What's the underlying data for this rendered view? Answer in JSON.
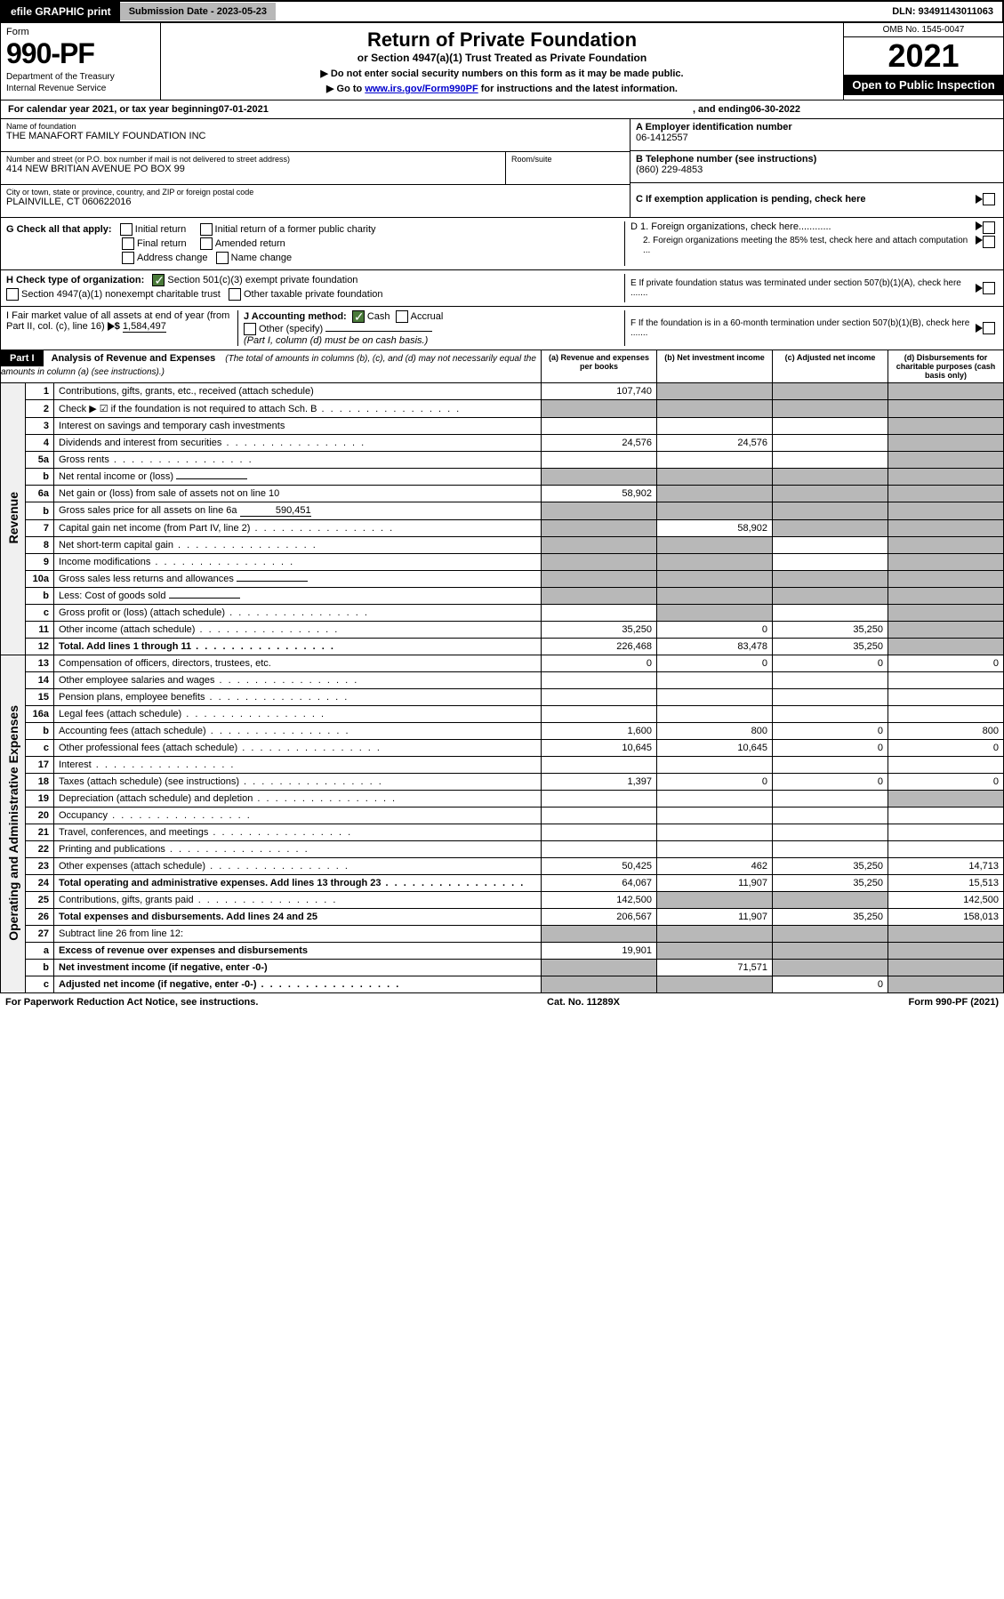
{
  "top": {
    "efile": "efile GRAPHIC print",
    "sub_date_lbl": "Submission Date - 2023-05-23",
    "dln": "DLN: 93491143011063"
  },
  "header": {
    "form_word": "Form",
    "form_no": "990-PF",
    "dept": "Department of the Treasury",
    "irs": "Internal Revenue Service",
    "title": "Return of Private Foundation",
    "subtitle": "or Section 4947(a)(1) Trust Treated as Private Foundation",
    "inst1": "▶ Do not enter social security numbers on this form as it may be made public.",
    "inst2_pre": "▶ Go to ",
    "inst2_link": "www.irs.gov/Form990PF",
    "inst2_post": " for instructions and the latest information.",
    "omb": "OMB No. 1545-0047",
    "year": "2021",
    "open": "Open to Public Inspection"
  },
  "cal": {
    "pre": "For calendar year 2021, or tax year beginning ",
    "begin": "07-01-2021",
    "mid": ", and ending ",
    "end": "06-30-2022"
  },
  "name": {
    "lbl": "Name of foundation",
    "val": "THE MANAFORT FAMILY FOUNDATION INC"
  },
  "addr": {
    "lbl": "Number and street (or P.O. box number if mail is not delivered to street address)",
    "val": "414 NEW BRITIAN AVENUE PO BOX 99",
    "room_lbl": "Room/suite"
  },
  "city": {
    "lbl": "City or town, state or province, country, and ZIP or foreign postal code",
    "val": "PLAINVILLE, CT  060622016"
  },
  "ein": {
    "lbl": "A Employer identification number",
    "val": "06-1412557"
  },
  "tel": {
    "lbl": "B Telephone number (see instructions)",
    "val": "(860) 229-4853"
  },
  "c": "C If exemption application is pending, check here",
  "g": {
    "lbl": "G Check all that apply:",
    "opts": [
      "Initial return",
      "Final return",
      "Address change",
      "Initial return of a former public charity",
      "Amended return",
      "Name change"
    ]
  },
  "d": {
    "d1": "D 1. Foreign organizations, check here............",
    "d2": "2. Foreign organizations meeting the 85% test, check here and attach computation ..."
  },
  "e": "E  If private foundation status was terminated under section 507(b)(1)(A), check here .......",
  "h": {
    "lbl": "H Check type of organization:",
    "o1": "Section 501(c)(3) exempt private foundation",
    "o2": "Section 4947(a)(1) nonexempt charitable trust",
    "o3": "Other taxable private foundation"
  },
  "i": {
    "lbl": "I Fair market value of all assets at end of year (from Part II, col. (c), line 16)",
    "val": "1,584,497"
  },
  "j": {
    "lbl": "J Accounting method:",
    "o1": "Cash",
    "o2": "Accrual",
    "o3": "Other (specify)",
    "note": "(Part I, column (d) must be on cash basis.)"
  },
  "f": "F  If the foundation is in a 60-month termination under section 507(b)(1)(B), check here .......",
  "part1": {
    "hdr": "Part I",
    "title": "Analysis of Revenue and Expenses",
    "note": "(The total of amounts in columns (b), (c), and (d) may not necessarily equal the amounts in column (a) (see instructions).)",
    "cols": [
      "(a)  Revenue and expenses per books",
      "(b)  Net investment income",
      "(c)  Adjusted net income",
      "(d)  Disbursements for charitable purposes (cash basis only)"
    ]
  },
  "revenue_label": "Revenue",
  "expenses_label": "Operating and Administrative Expenses",
  "rows": [
    {
      "n": "1",
      "l": "Contributions, gifts, grants, etc., received (attach schedule)",
      "a": "107,740",
      "b": "",
      "c": "",
      "d": "",
      "grey": [
        "b",
        "c",
        "d"
      ]
    },
    {
      "n": "2",
      "l": "Check ▶ ☑ if the foundation is not required to attach Sch. B",
      "dots": true,
      "grey": [
        "a",
        "b",
        "c",
        "d"
      ]
    },
    {
      "n": "3",
      "l": "Interest on savings and temporary cash investments",
      "a": "",
      "b": "",
      "c": "",
      "d": "",
      "grey": [
        "d"
      ]
    },
    {
      "n": "4",
      "l": "Dividends and interest from securities",
      "dots": true,
      "a": "24,576",
      "b": "24,576",
      "c": "",
      "d": "",
      "grey": [
        "d"
      ]
    },
    {
      "n": "5a",
      "l": "Gross rents",
      "dots": true,
      "grey": [
        "d"
      ]
    },
    {
      "n": "b",
      "l": "Net rental income or (loss)",
      "inline": "",
      "grey": [
        "a",
        "b",
        "c",
        "d"
      ]
    },
    {
      "n": "6a",
      "l": "Net gain or (loss) from sale of assets not on line 10",
      "a": "58,902",
      "grey": [
        "b",
        "c",
        "d"
      ]
    },
    {
      "n": "b",
      "l": "Gross sales price for all assets on line 6a",
      "inline": "590,451",
      "grey": [
        "a",
        "b",
        "c",
        "d"
      ]
    },
    {
      "n": "7",
      "l": "Capital gain net income (from Part IV, line 2)",
      "dots": true,
      "b": "58,902",
      "grey": [
        "a",
        "c",
        "d"
      ]
    },
    {
      "n": "8",
      "l": "Net short-term capital gain",
      "dots": true,
      "grey": [
        "a",
        "b",
        "d"
      ]
    },
    {
      "n": "9",
      "l": "Income modifications",
      "dots": true,
      "grey": [
        "a",
        "b",
        "d"
      ]
    },
    {
      "n": "10a",
      "l": "Gross sales less returns and allowances",
      "inline": "",
      "grey": [
        "a",
        "b",
        "c",
        "d"
      ]
    },
    {
      "n": "b",
      "l": "Less: Cost of goods sold",
      "dots": true,
      "inline": "",
      "grey": [
        "a",
        "b",
        "c",
        "d"
      ]
    },
    {
      "n": "c",
      "l": "Gross profit or (loss) (attach schedule)",
      "dots": true,
      "grey": [
        "b",
        "d"
      ]
    },
    {
      "n": "11",
      "l": "Other income (attach schedule)",
      "dots": true,
      "a": "35,250",
      "b": "0",
      "c": "35,250",
      "grey": [
        "d"
      ]
    },
    {
      "n": "12",
      "l": "Total. Add lines 1 through 11",
      "dots": true,
      "bold": true,
      "a": "226,468",
      "b": "83,478",
      "c": "35,250",
      "grey": [
        "d"
      ]
    },
    {
      "n": "13",
      "l": "Compensation of officers, directors, trustees, etc.",
      "a": "0",
      "b": "0",
      "c": "0",
      "d": "0"
    },
    {
      "n": "14",
      "l": "Other employee salaries and wages",
      "dots": true
    },
    {
      "n": "15",
      "l": "Pension plans, employee benefits",
      "dots": true
    },
    {
      "n": "16a",
      "l": "Legal fees (attach schedule)",
      "dots": true
    },
    {
      "n": "b",
      "l": "Accounting fees (attach schedule)",
      "dots": true,
      "a": "1,600",
      "b": "800",
      "c": "0",
      "d": "800"
    },
    {
      "n": "c",
      "l": "Other professional fees (attach schedule)",
      "dots": true,
      "a": "10,645",
      "b": "10,645",
      "c": "0",
      "d": "0"
    },
    {
      "n": "17",
      "l": "Interest",
      "dots": true
    },
    {
      "n": "18",
      "l": "Taxes (attach schedule) (see instructions)",
      "dots": true,
      "a": "1,397",
      "b": "0",
      "c": "0",
      "d": "0"
    },
    {
      "n": "19",
      "l": "Depreciation (attach schedule) and depletion",
      "dots": true,
      "grey": [
        "d"
      ]
    },
    {
      "n": "20",
      "l": "Occupancy",
      "dots": true
    },
    {
      "n": "21",
      "l": "Travel, conferences, and meetings",
      "dots": true
    },
    {
      "n": "22",
      "l": "Printing and publications",
      "dots": true
    },
    {
      "n": "23",
      "l": "Other expenses (attach schedule)",
      "dots": true,
      "a": "50,425",
      "b": "462",
      "c": "35,250",
      "d": "14,713"
    },
    {
      "n": "24",
      "l": "Total operating and administrative expenses. Add lines 13 through 23",
      "dots": true,
      "bold": true,
      "a": "64,067",
      "b": "11,907",
      "c": "35,250",
      "d": "15,513"
    },
    {
      "n": "25",
      "l": "Contributions, gifts, grants paid",
      "dots": true,
      "a": "142,500",
      "d": "142,500",
      "grey": [
        "b",
        "c"
      ]
    },
    {
      "n": "26",
      "l": "Total expenses and disbursements. Add lines 24 and 25",
      "bold": true,
      "a": "206,567",
      "b": "11,907",
      "c": "35,250",
      "d": "158,013"
    },
    {
      "n": "27",
      "l": "Subtract line 26 from line 12:",
      "grey": [
        "a",
        "b",
        "c",
        "d"
      ]
    },
    {
      "n": "a",
      "l": "Excess of revenue over expenses and disbursements",
      "bold": true,
      "a": "19,901",
      "grey": [
        "b",
        "c",
        "d"
      ]
    },
    {
      "n": "b",
      "l": "Net investment income (if negative, enter -0-)",
      "bold": true,
      "b": "71,571",
      "grey": [
        "a",
        "c",
        "d"
      ]
    },
    {
      "n": "c",
      "l": "Adjusted net income (if negative, enter -0-)",
      "dots": true,
      "bold": true,
      "c": "0",
      "grey": [
        "a",
        "b",
        "d"
      ]
    }
  ],
  "footer": {
    "left": "For Paperwork Reduction Act Notice, see instructions.",
    "mid": "Cat. No. 11289X",
    "right": "Form 990-PF (2021)"
  }
}
